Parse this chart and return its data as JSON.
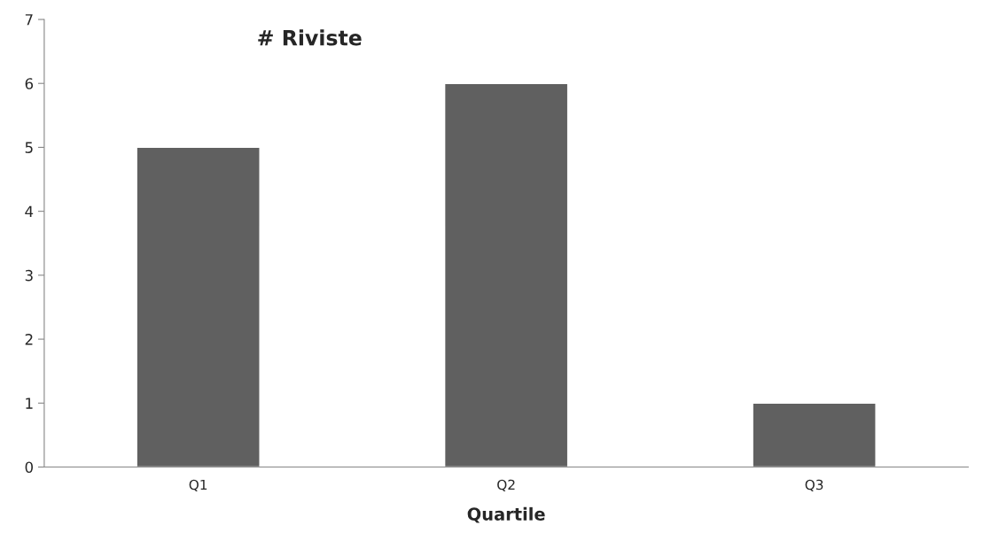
{
  "chart_data": {
    "type": "bar",
    "title": "# Riviste",
    "xlabel": "Quartile",
    "categories": [
      "Q1",
      "Q2",
      "Q3"
    ],
    "values": [
      5,
      6,
      1
    ],
    "color": "#606060",
    "ylim": [
      0,
      7
    ],
    "yticks": [
      0,
      1,
      2,
      3,
      4,
      5,
      6,
      7
    ],
    "grid": false,
    "legend": false
  }
}
